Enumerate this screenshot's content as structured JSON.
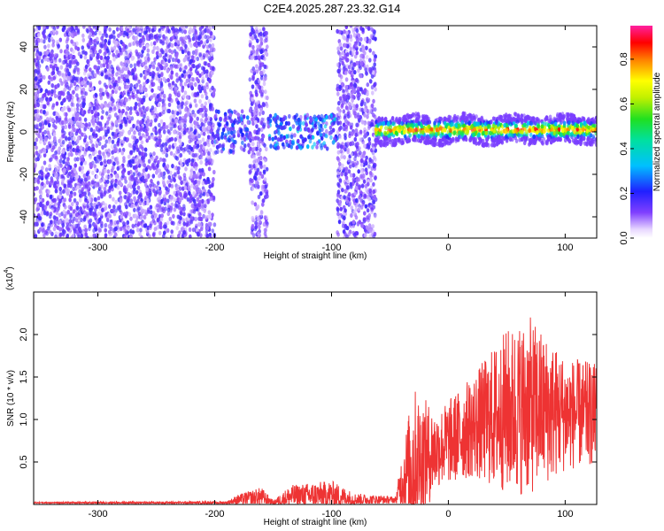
{
  "title": "C2E4.2025.287.23.32.G14",
  "chart_data": [
    {
      "type": "heatmap",
      "xlabel": "Height of straight line (km)",
      "ylabel": "Frequency (Hz)",
      "xlim": [
        -355,
        127
      ],
      "ylim": [
        -50,
        50
      ],
      "x_ticks": [
        -300,
        -200,
        -100,
        0,
        100
      ],
      "y_ticks": [
        -40,
        -20,
        0,
        20,
        40
      ],
      "colorbar": {
        "label": "Normalized spectral amplitude",
        "range": [
          0,
          0.95
        ],
        "ticks": [
          0.0,
          0.2,
          0.4,
          0.6,
          0.8
        ]
      },
      "regions": [
        {
          "x": [
            -355,
            -200
          ],
          "description_level": 0.15,
          "freq_spread": [
            -50,
            50
          ]
        },
        {
          "x": [
            -200,
            -170
          ],
          "description_level": 0.25,
          "freq_spread": [
            -10,
            10
          ]
        },
        {
          "x": [
            -170,
            -155
          ],
          "description_level": 0.15,
          "freq_spread": [
            -50,
            50
          ]
        },
        {
          "x": [
            -155,
            -95
          ],
          "description_level": 0.3,
          "freq_spread": [
            -8,
            8
          ]
        },
        {
          "x": [
            -95,
            -62
          ],
          "description_level": 0.15,
          "freq_spread": [
            -50,
            50
          ]
        },
        {
          "x": [
            -62,
            127
          ],
          "description_level": 0.75,
          "freq_spread": [
            -5,
            8
          ]
        }
      ]
    },
    {
      "type": "line",
      "xlabel": "Height of straight line (km)",
      "ylabel": "SNR (10 * v/v)",
      "y_multiplier": "(x10",
      "y_multiplier_exp": "4",
      "y_multiplier_close": ")",
      "xlim": [
        -355,
        127
      ],
      "ylim": [
        0,
        2.5
      ],
      "x_ticks": [
        -300,
        -200,
        -100,
        0,
        100
      ],
      "y_ticks": [
        0.5,
        1.0,
        1.5,
        2.0
      ],
      "series": [
        {
          "color": "#ee3333",
          "envelope": [
            {
              "x": -355,
              "base": 0.02,
              "spread": 0.01
            },
            {
              "x": -190,
              "base": 0.02,
              "spread": 0.02
            },
            {
              "x": -180,
              "base": 0.05,
              "spread": 0.08
            },
            {
              "x": -160,
              "base": 0.08,
              "spread": 0.15
            },
            {
              "x": -150,
              "base": 0.02,
              "spread": 0.03
            },
            {
              "x": -135,
              "base": 0.08,
              "spread": 0.18
            },
            {
              "x": -100,
              "base": 0.1,
              "spread": 0.22
            },
            {
              "x": -80,
              "base": 0.05,
              "spread": 0.1
            },
            {
              "x": -45,
              "base": 0.05,
              "spread": 0.05
            },
            {
              "x": -40,
              "base": 0.25,
              "spread": 0.4
            },
            {
              "x": -30,
              "base": 0.4,
              "spread": 1.2
            },
            {
              "x": -10,
              "base": 0.6,
              "spread": 0.6
            },
            {
              "x": 20,
              "base": 0.85,
              "spread": 0.8
            },
            {
              "x": 50,
              "base": 1.0,
              "spread": 1.3
            },
            {
              "x": 70,
              "base": 1.05,
              "spread": 1.4
            },
            {
              "x": 100,
              "base": 1.0,
              "spread": 0.9
            },
            {
              "x": 127,
              "base": 1.0,
              "spread": 0.8
            }
          ]
        }
      ]
    }
  ]
}
